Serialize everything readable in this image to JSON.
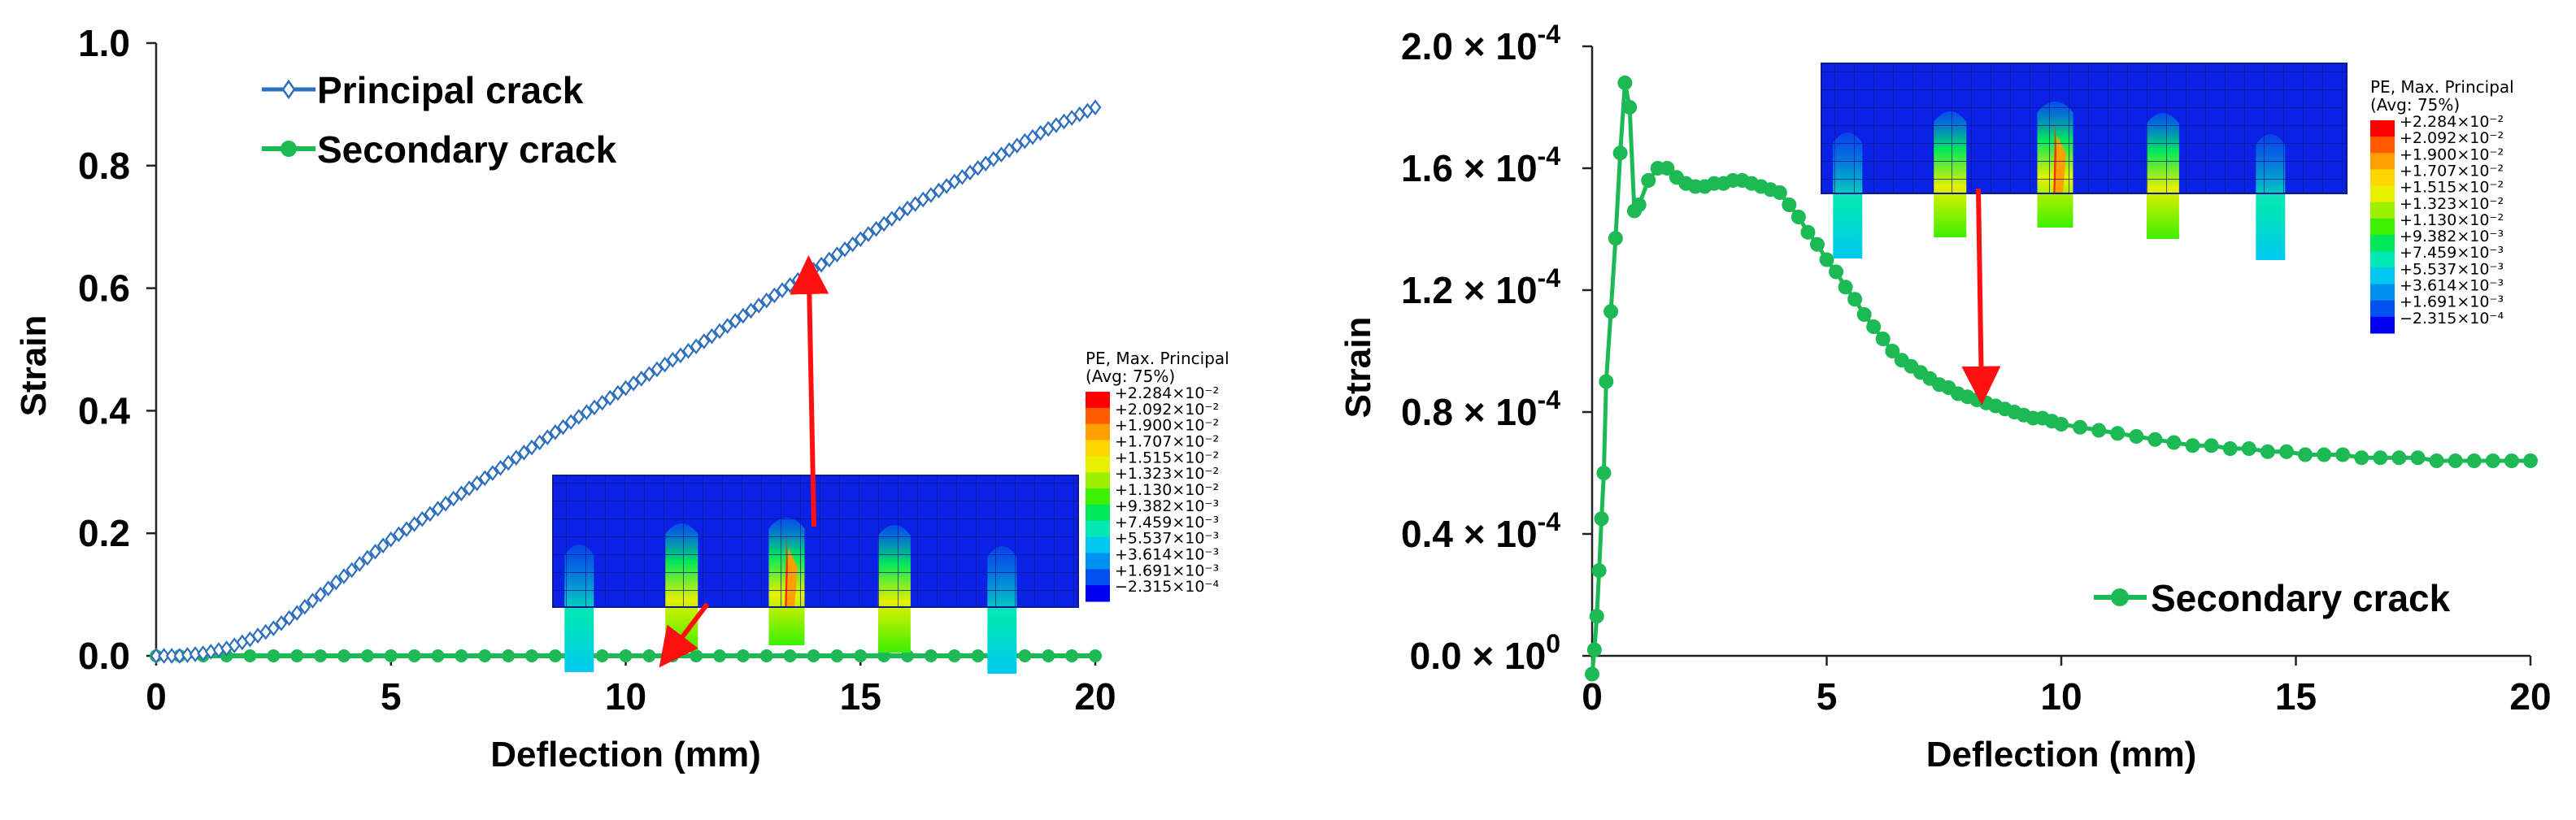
{
  "chart_data": [
    {
      "type": "line",
      "xlabel": "Deflection (mm)",
      "ylabel": "Strain",
      "xlim": [
        0,
        20
      ],
      "ylim": [
        0,
        1.0
      ],
      "x_ticks": [
        "0",
        "5",
        "10",
        "15",
        "20"
      ],
      "y_ticks": [
        "0.0",
        "0.2",
        "0.4",
        "0.6",
        "0.8",
        "1.0"
      ],
      "grid": false,
      "legend_placement": "top-left",
      "series": [
        {
          "name": "Principal crack",
          "color": "#2e6fbe",
          "marker": "open-diamond",
          "x": [
            0,
            0.5,
            1.0,
            1.5,
            2.0,
            2.5,
            3.0,
            3.5,
            4.0,
            4.5,
            5.0,
            5.5,
            6.0,
            6.5,
            7.0,
            7.5,
            8.0,
            8.5,
            9.0,
            9.5,
            10.0,
            10.5,
            11.0,
            11.5,
            12.0,
            12.5,
            13.0,
            13.5,
            14.0,
            14.5,
            15.0,
            15.5,
            16.0,
            16.5,
            17.0,
            17.5,
            18.0,
            18.5,
            19.0,
            19.5,
            20.0
          ],
          "y": [
            0.0,
            0.0,
            0.004,
            0.012,
            0.027,
            0.045,
            0.07,
            0.1,
            0.13,
            0.16,
            0.19,
            0.215,
            0.24,
            0.265,
            0.29,
            0.315,
            0.34,
            0.365,
            0.39,
            0.413,
            0.437,
            0.46,
            0.483,
            0.505,
            0.53,
            0.555,
            0.58,
            0.605,
            0.63,
            0.655,
            0.68,
            0.705,
            0.73,
            0.752,
            0.774,
            0.796,
            0.818,
            0.84,
            0.86,
            0.878,
            0.895
          ]
        },
        {
          "name": "Secondary crack",
          "color": "#1db954",
          "marker": "filled-circle",
          "x": [
            0,
            0.5,
            1.0,
            1.5,
            2.0,
            2.5,
            3.0,
            3.5,
            4.0,
            4.5,
            5.0,
            5.5,
            6.0,
            6.5,
            7.0,
            7.5,
            8.0,
            8.5,
            9.0,
            9.5,
            10.0,
            10.5,
            11.0,
            11.5,
            12.0,
            12.5,
            13.0,
            13.5,
            14.0,
            14.5,
            15.0,
            15.5,
            16.0,
            16.5,
            17.0,
            17.5,
            18.0,
            18.5,
            19.0,
            19.5,
            20.0
          ],
          "y": [
            0,
            0,
            0,
            0,
            0,
            0,
            0,
            0,
            0,
            0,
            0,
            0,
            0,
            0,
            0,
            0,
            0,
            0,
            0,
            0,
            0,
            0,
            0,
            0,
            0,
            0,
            0,
            0,
            0,
            0,
            0,
            0,
            0,
            0,
            0,
            0,
            0,
            0,
            0,
            0,
            0
          ]
        }
      ],
      "inset": {
        "colorbar_title": [
          "PE, Max. Principal",
          "(Avg: 75%)"
        ],
        "colorbar_labels": [
          "+2.284×10⁻²",
          "+2.092×10⁻²",
          "+1.900×10⁻²",
          "+1.707×10⁻²",
          "+1.515×10⁻²",
          "+1.323×10⁻²",
          "+1.130×10⁻²",
          "+9.382×10⁻³",
          "+7.459×10⁻³",
          "+5.537×10⁻³",
          "+3.614×10⁻³",
          "+1.691×10⁻³",
          "−2.315×10⁻⁴"
        ],
        "colorbar_colors": [
          "#ff0000",
          "#ff5a00",
          "#ffa000",
          "#ffd700",
          "#e6f000",
          "#9cf000",
          "#3cf000",
          "#00e85a",
          "#00e8b4",
          "#00c8f0",
          "#0090f0",
          "#0050f0",
          "#0000f0"
        ],
        "arrows": [
          {
            "target_x": 13.9,
            "target_y": 0.63
          },
          {
            "target_x": 10.9,
            "target_y": 0.0
          }
        ]
      }
    },
    {
      "type": "line",
      "xlabel": "Deflection (mm)",
      "ylabel": "Strain",
      "xlim": [
        0,
        20
      ],
      "ylim": [
        0,
        0.0002
      ],
      "x_ticks": [
        "0",
        "5",
        "10",
        "15",
        "20"
      ],
      "y_ticks": [
        {
          "mantissa": "0.0 × 10",
          "exp": "0"
        },
        {
          "mantissa": "0.4 × 10",
          "exp": "-4"
        },
        {
          "mantissa": "0.8 × 10",
          "exp": "-4"
        },
        {
          "mantissa": "1.2 × 10",
          "exp": "-4"
        },
        {
          "mantissa": "1.6 × 10",
          "exp": "-4"
        },
        {
          "mantissa": "2.0 × 10",
          "exp": "-4"
        }
      ],
      "grid": false,
      "legend_placement": "bottom-right",
      "series": [
        {
          "name": "Secondary crack",
          "color": "#1db954",
          "marker": "filled-circle",
          "x": [
            0.0,
            0.05,
            0.1,
            0.15,
            0.2,
            0.25,
            0.3,
            0.4,
            0.5,
            0.6,
            0.7,
            0.8,
            0.9,
            1.0,
            1.2,
            1.4,
            1.6,
            1.8,
            2.0,
            2.2,
            2.4,
            2.6,
            2.8,
            3.0,
            3.2,
            3.4,
            3.6,
            3.8,
            4.0,
            4.2,
            4.4,
            4.6,
            4.8,
            5.0,
            5.2,
            5.4,
            5.6,
            5.8,
            6.0,
            6.2,
            6.4,
            6.6,
            6.8,
            7.0,
            7.2,
            7.4,
            7.6,
            7.8,
            8.0,
            8.2,
            8.4,
            8.6,
            8.8,
            9.0,
            9.2,
            9.4,
            9.6,
            9.8,
            10.0,
            10.4,
            10.8,
            11.2,
            11.6,
            12.0,
            12.4,
            12.8,
            13.2,
            13.6,
            14.0,
            14.4,
            14.8,
            15.2,
            15.6,
            16.0,
            16.4,
            16.8,
            17.2,
            17.6,
            18.0,
            18.4,
            18.8,
            19.2,
            19.6,
            20.0
          ],
          "y": [
            -6e-06,
            2e-06,
            1.3e-05,
            2.8e-05,
            4.5e-05,
            6e-05,
            9e-05,
            0.000113,
            0.000137,
            0.000165,
            0.000188,
            0.00018,
            0.000146,
            0.000148,
            0.000156,
            0.00016,
            0.00016,
            0.000157,
            0.000155,
            0.000154,
            0.000154,
            0.000155,
            0.000155,
            0.000156,
            0.000156,
            0.000155,
            0.000154,
            0.000153,
            0.000152,
            0.000148,
            0.000144,
            0.000139,
            0.000135,
            0.00013,
            0.000126,
            0.000121,
            0.000117,
            0.000112,
            0.000108,
            0.000104,
            0.0001,
            9.7e-05,
            9.5e-05,
            9.3e-05,
            9.1e-05,
            8.9e-05,
            8.8e-05,
            8.6e-05,
            8.5e-05,
            8.4e-05,
            8.3e-05,
            8.2e-05,
            8.1e-05,
            8e-05,
            7.9e-05,
            7.8e-05,
            7.8e-05,
            7.7e-05,
            7.6e-05,
            7.5e-05,
            7.4e-05,
            7.3e-05,
            7.2e-05,
            7.1e-05,
            7e-05,
            6.9e-05,
            6.9e-05,
            6.8e-05,
            6.8e-05,
            6.7e-05,
            6.7e-05,
            6.6e-05,
            6.6e-05,
            6.6e-05,
            6.5e-05,
            6.5e-05,
            6.5e-05,
            6.5e-05,
            6.4e-05,
            6.4e-05,
            6.4e-05,
            6.4e-05,
            6.4e-05,
            6.4e-05
          ]
        }
      ],
      "inset": {
        "colorbar_title": [
          "PE, Max. Principal",
          "(Avg: 75%)"
        ],
        "colorbar_labels": [
          "+2.284×10⁻²",
          "+2.092×10⁻²",
          "+1.900×10⁻²",
          "+1.707×10⁻²",
          "+1.515×10⁻²",
          "+1.323×10⁻²",
          "+1.130×10⁻²",
          "+9.382×10⁻³",
          "+7.459×10⁻³",
          "+5.537×10⁻³",
          "+3.614×10⁻³",
          "+1.691×10⁻³",
          "−2.315×10⁻⁴"
        ],
        "colorbar_colors": [
          "#ff0000",
          "#ff5a00",
          "#ffa000",
          "#ffd700",
          "#e6f000",
          "#9cf000",
          "#3cf000",
          "#00e85a",
          "#00e8b4",
          "#00c8f0",
          "#0090f0",
          "#0050f0",
          "#0000f0"
        ],
        "arrows": [
          {
            "target_x": 8.3,
            "target_y": 8.7e-05
          }
        ]
      }
    }
  ]
}
